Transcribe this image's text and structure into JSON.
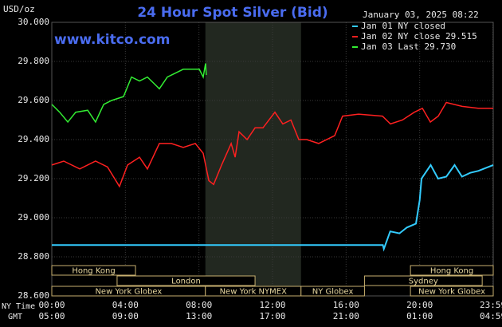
{
  "chart_data": {
    "type": "line",
    "title": "24 Hour Spot Silver (Bid)",
    "date": "January 03, 2025 08:22",
    "source": "www.kitco.com",
    "y_label": "USD/oz",
    "x_label": "NY Time",
    "x2_label": "GMT",
    "xlim": [
      0,
      24
    ],
    "xticks": [
      {
        "value": 0,
        "label": "00:00"
      },
      {
        "value": 4,
        "label": "04:00"
      },
      {
        "value": 8,
        "label": "08:00"
      },
      {
        "value": 12,
        "label": "12:00"
      },
      {
        "value": 16,
        "label": "16:00"
      },
      {
        "value": 20,
        "label": "20:00"
      },
      {
        "value": 23.983,
        "label": "23:59"
      }
    ],
    "x2ticks": [
      {
        "value": 0,
        "label": "05:00"
      },
      {
        "value": 4,
        "label": "09:00"
      },
      {
        "value": 8,
        "label": "13:00"
      },
      {
        "value": 12,
        "label": "17:00"
      },
      {
        "value": 16,
        "label": "21:00"
      },
      {
        "value": 20,
        "label": "01:00"
      },
      {
        "value": 23.983,
        "label": "04:59"
      }
    ],
    "ylim": [
      28.6,
      30
    ],
    "yticks": [
      {
        "value": 28.6,
        "label": "28.600"
      },
      {
        "value": 28.8,
        "label": "28.800"
      },
      {
        "value": 29,
        "label": "29.000"
      },
      {
        "value": 29.2,
        "label": "29.200"
      },
      {
        "value": 29.4,
        "label": "29.400"
      },
      {
        "value": 29.6,
        "label": "29.600"
      },
      {
        "value": 29.8,
        "label": "29.800"
      },
      {
        "value": 30,
        "label": "30.000"
      }
    ],
    "grid": true,
    "series": [
      {
        "name": "Jan 01 NY closed",
        "color": "#33ccff",
        "x": [
          0,
          18.0,
          18.05,
          18.4,
          18.9,
          19.3,
          19.8,
          20.0,
          20.1,
          20.6,
          21.0,
          21.45,
          21.9,
          22.3,
          22.75,
          23.2,
          24
        ],
        "values": [
          28.86,
          28.86,
          28.84,
          28.93,
          28.92,
          28.95,
          28.97,
          29.09,
          29.2,
          29.27,
          29.2,
          29.21,
          29.27,
          29.21,
          29.23,
          29.24,
          29.27
        ]
      },
      {
        "name": "Jan 02 NY close 29.515",
        "color": "#ff2020",
        "x": [
          0,
          0.65,
          1.52,
          2.38,
          3.03,
          3.68,
          4.12,
          4.77,
          5.2,
          5.85,
          6.5,
          7.15,
          7.8,
          8.23,
          8.54,
          8.8,
          9.23,
          9.75,
          9.97,
          10.18,
          10.62,
          11.05,
          11.48,
          12.13,
          12.56,
          13.0,
          13.43,
          13.86,
          14.51,
          15.38,
          15.81,
          16.68,
          17.98,
          18.41,
          19.06,
          19.71,
          20.15,
          20.58,
          21.01,
          21.45,
          22.31,
          23.18,
          24.0
        ],
        "values": [
          29.27,
          29.29,
          29.25,
          29.29,
          29.26,
          29.16,
          29.27,
          29.31,
          29.25,
          29.38,
          29.38,
          29.36,
          29.38,
          29.33,
          29.19,
          29.17,
          29.27,
          29.38,
          29.31,
          29.44,
          29.4,
          29.46,
          29.46,
          29.54,
          29.48,
          29.5,
          29.4,
          29.4,
          29.38,
          29.42,
          29.52,
          29.53,
          29.52,
          29.48,
          29.5,
          29.54,
          29.56,
          29.49,
          29.52,
          29.59,
          29.57,
          29.56,
          29.56
        ]
      },
      {
        "name": "Jan 03 Last 29.730",
        "color": "#33ee33",
        "x": [
          0,
          0.43,
          0.87,
          1.3,
          1.95,
          2.38,
          2.82,
          3.25,
          3.9,
          4.33,
          4.77,
          5.2,
          5.63,
          5.85,
          6.28,
          6.72,
          7.15,
          7.58,
          8.02,
          8.23,
          8.36,
          8.4
        ],
        "values": [
          29.58,
          29.54,
          29.49,
          29.54,
          29.55,
          29.49,
          29.58,
          29.6,
          29.62,
          29.72,
          29.7,
          29.72,
          29.68,
          29.66,
          29.72,
          29.74,
          29.76,
          29.76,
          29.76,
          29.72,
          29.79,
          29.73
        ]
      }
    ],
    "session_rows": [
      [
        {
          "label": "Hong Kong",
          "start": 0,
          "end": 4.55
        },
        {
          "label": "Hong Kong",
          "start": 19.5,
          "end": 24
        }
      ],
      [
        {
          "label": "London",
          "start": 3.55,
          "end": 11.05
        },
        {
          "label": "Sydney",
          "start": 17.0,
          "end": 23.4
        }
      ],
      [
        {
          "label": "New York Globex",
          "start": 0,
          "end": 8.35
        },
        {
          "label": "New York NYMEX",
          "start": 8.35,
          "end": 13.55
        },
        {
          "label": "NY Globex",
          "start": 13.55,
          "end": 17.0
        },
        {
          "label": "New York Globex",
          "start": 19.5,
          "end": 24
        }
      ]
    ],
    "shaded": {
      "start": 8.35,
      "end": 13.55,
      "color": "#222820"
    }
  }
}
